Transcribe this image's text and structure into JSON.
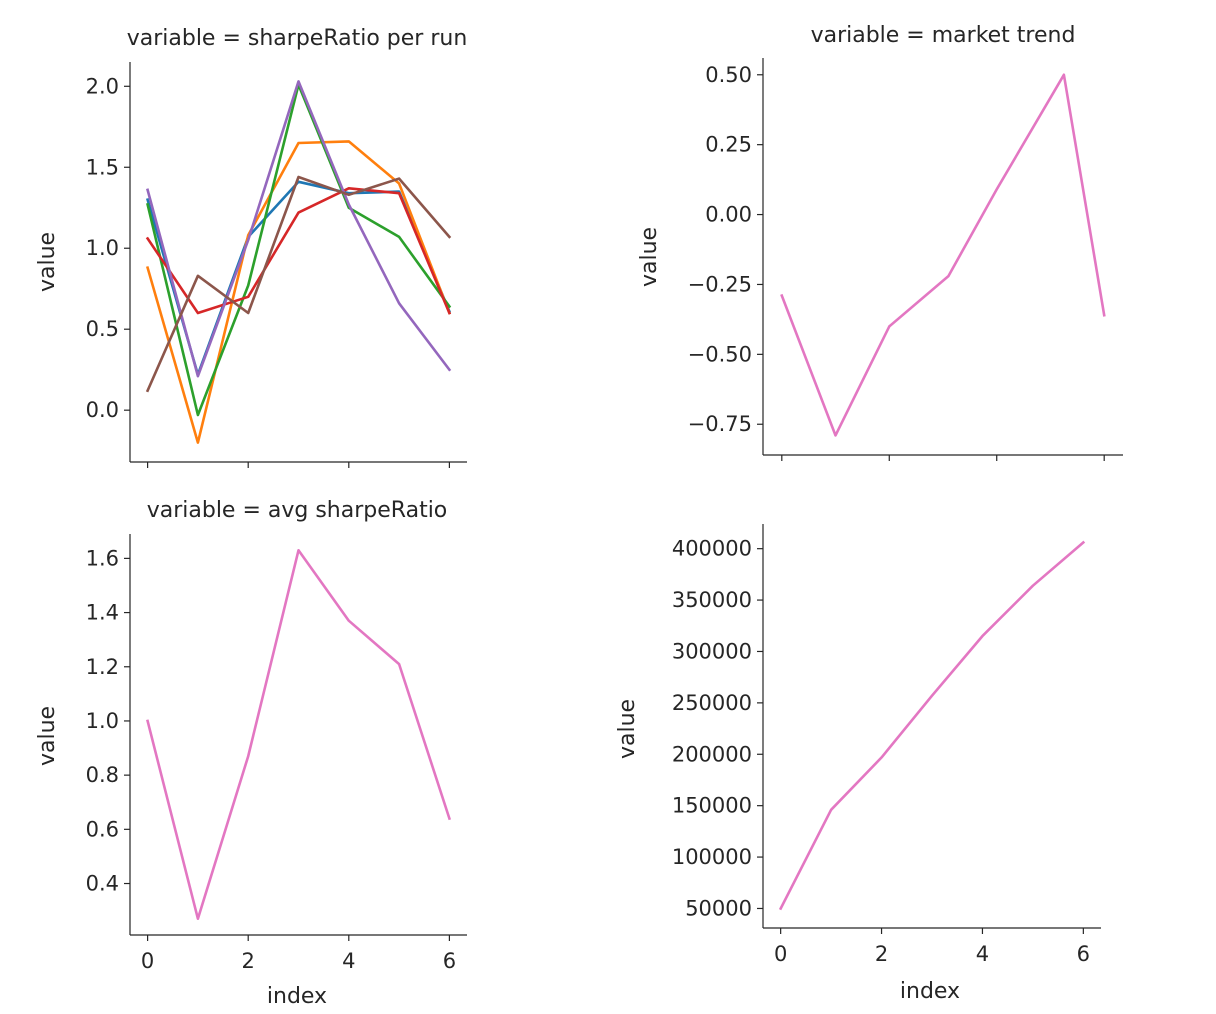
{
  "chart_data": [
    {
      "type": "line",
      "title": "variable = sharpeRatio per run",
      "xlabel": "",
      "ylabel": "value",
      "x": [
        0,
        1,
        2,
        3,
        4,
        5,
        6
      ],
      "xlim": [
        -0.35,
        6.35
      ],
      "ylim": [
        -0.32,
        2.15
      ],
      "xticks": [
        0,
        2,
        4,
        6
      ],
      "show_xtick_labels": false,
      "yticks": [
        0.0,
        0.5,
        1.0,
        1.5,
        2.0
      ],
      "ytick_labels": [
        "0.0",
        "0.5",
        "1.0",
        "1.5",
        "2.0"
      ],
      "series": [
        {
          "color": "#1f77b4",
          "values": [
            1.3,
            0.22,
            1.07,
            1.41,
            1.34,
            1.35,
            0.61
          ]
        },
        {
          "color": "#ff7f0e",
          "values": [
            0.88,
            -0.2,
            1.08,
            1.65,
            1.66,
            1.4,
            0.6
          ]
        },
        {
          "color": "#2ca02c",
          "values": [
            1.27,
            -0.03,
            0.77,
            2.01,
            1.25,
            1.07,
            0.64
          ]
        },
        {
          "color": "#d62728",
          "values": [
            1.06,
            0.6,
            0.7,
            1.22,
            1.37,
            1.34,
            0.6
          ]
        },
        {
          "color": "#9467bd",
          "values": [
            1.36,
            0.21,
            1.05,
            2.03,
            1.27,
            0.66,
            0.25
          ]
        },
        {
          "color": "#8c564b",
          "values": [
            0.12,
            0.83,
            0.6,
            1.44,
            1.33,
            1.43,
            1.07
          ]
        }
      ],
      "grid": false,
      "legend": "none"
    },
    {
      "type": "line",
      "title": "variable = market trend",
      "xlabel": "",
      "ylabel": "value",
      "xlim": [
        -0.35,
        6.35
      ],
      "ylim": [
        -0.86,
        0.56
      ],
      "xticks": [
        0,
        2,
        4,
        6
      ],
      "show_xtick_labels": false,
      "yticks": [
        -0.75,
        -0.5,
        -0.25,
        0.0,
        0.25,
        0.5
      ],
      "ytick_labels": [
        "−0.75",
        "−0.50",
        "−0.25",
        "0.00",
        "0.25",
        "0.50"
      ],
      "series": [
        {
          "color": "#e377c2",
          "x": [
            0,
            1,
            2,
            3.1,
            4,
            5.25,
            6
          ],
          "values": [
            -0.29,
            -0.79,
            -0.4,
            -0.22,
            0.09,
            0.5,
            -0.36
          ]
        }
      ],
      "grid": false,
      "legend": "none"
    },
    {
      "type": "line",
      "title": "variable = avg sharpeRatio",
      "xlabel": "index",
      "ylabel": "value",
      "x": [
        0,
        1,
        2,
        3,
        4,
        5,
        6
      ],
      "xlim": [
        -0.35,
        6.35
      ],
      "ylim": [
        0.21,
        1.69
      ],
      "xticks": [
        0,
        2,
        4,
        6
      ],
      "show_xtick_labels": true,
      "xtick_labels": [
        "0",
        "2",
        "4",
        "6"
      ],
      "yticks": [
        0.4,
        0.6,
        0.8,
        1.0,
        1.2,
        1.4,
        1.6
      ],
      "ytick_labels": [
        "0.4",
        "0.6",
        "0.8",
        "1.0",
        "1.2",
        "1.4",
        "1.6"
      ],
      "series": [
        {
          "color": "#e377c2",
          "values": [
            1.0,
            0.27,
            0.87,
            1.63,
            1.37,
            1.21,
            0.64
          ]
        }
      ],
      "grid": false,
      "legend": "none"
    },
    {
      "type": "line",
      "title": "",
      "xlabel": "index",
      "ylabel": "value",
      "x": [
        0,
        1,
        2,
        3,
        4,
        5,
        6
      ],
      "xlim": [
        -0.35,
        6.35
      ],
      "ylim": [
        31000,
        424000
      ],
      "xticks": [
        0,
        2,
        4,
        6
      ],
      "show_xtick_labels": true,
      "xtick_labels": [
        "0",
        "2",
        "4",
        "6"
      ],
      "yticks": [
        50000,
        100000,
        150000,
        200000,
        250000,
        300000,
        350000,
        400000
      ],
      "ytick_labels": [
        "50000",
        "100000",
        "150000",
        "200000",
        "250000",
        "300000",
        "350000",
        "400000"
      ],
      "series": [
        {
          "color": "#e377c2",
          "values": [
            50000,
            146000,
            197000,
            257000,
            315000,
            364000,
            406000
          ]
        }
      ],
      "grid": false,
      "legend": "none"
    }
  ]
}
